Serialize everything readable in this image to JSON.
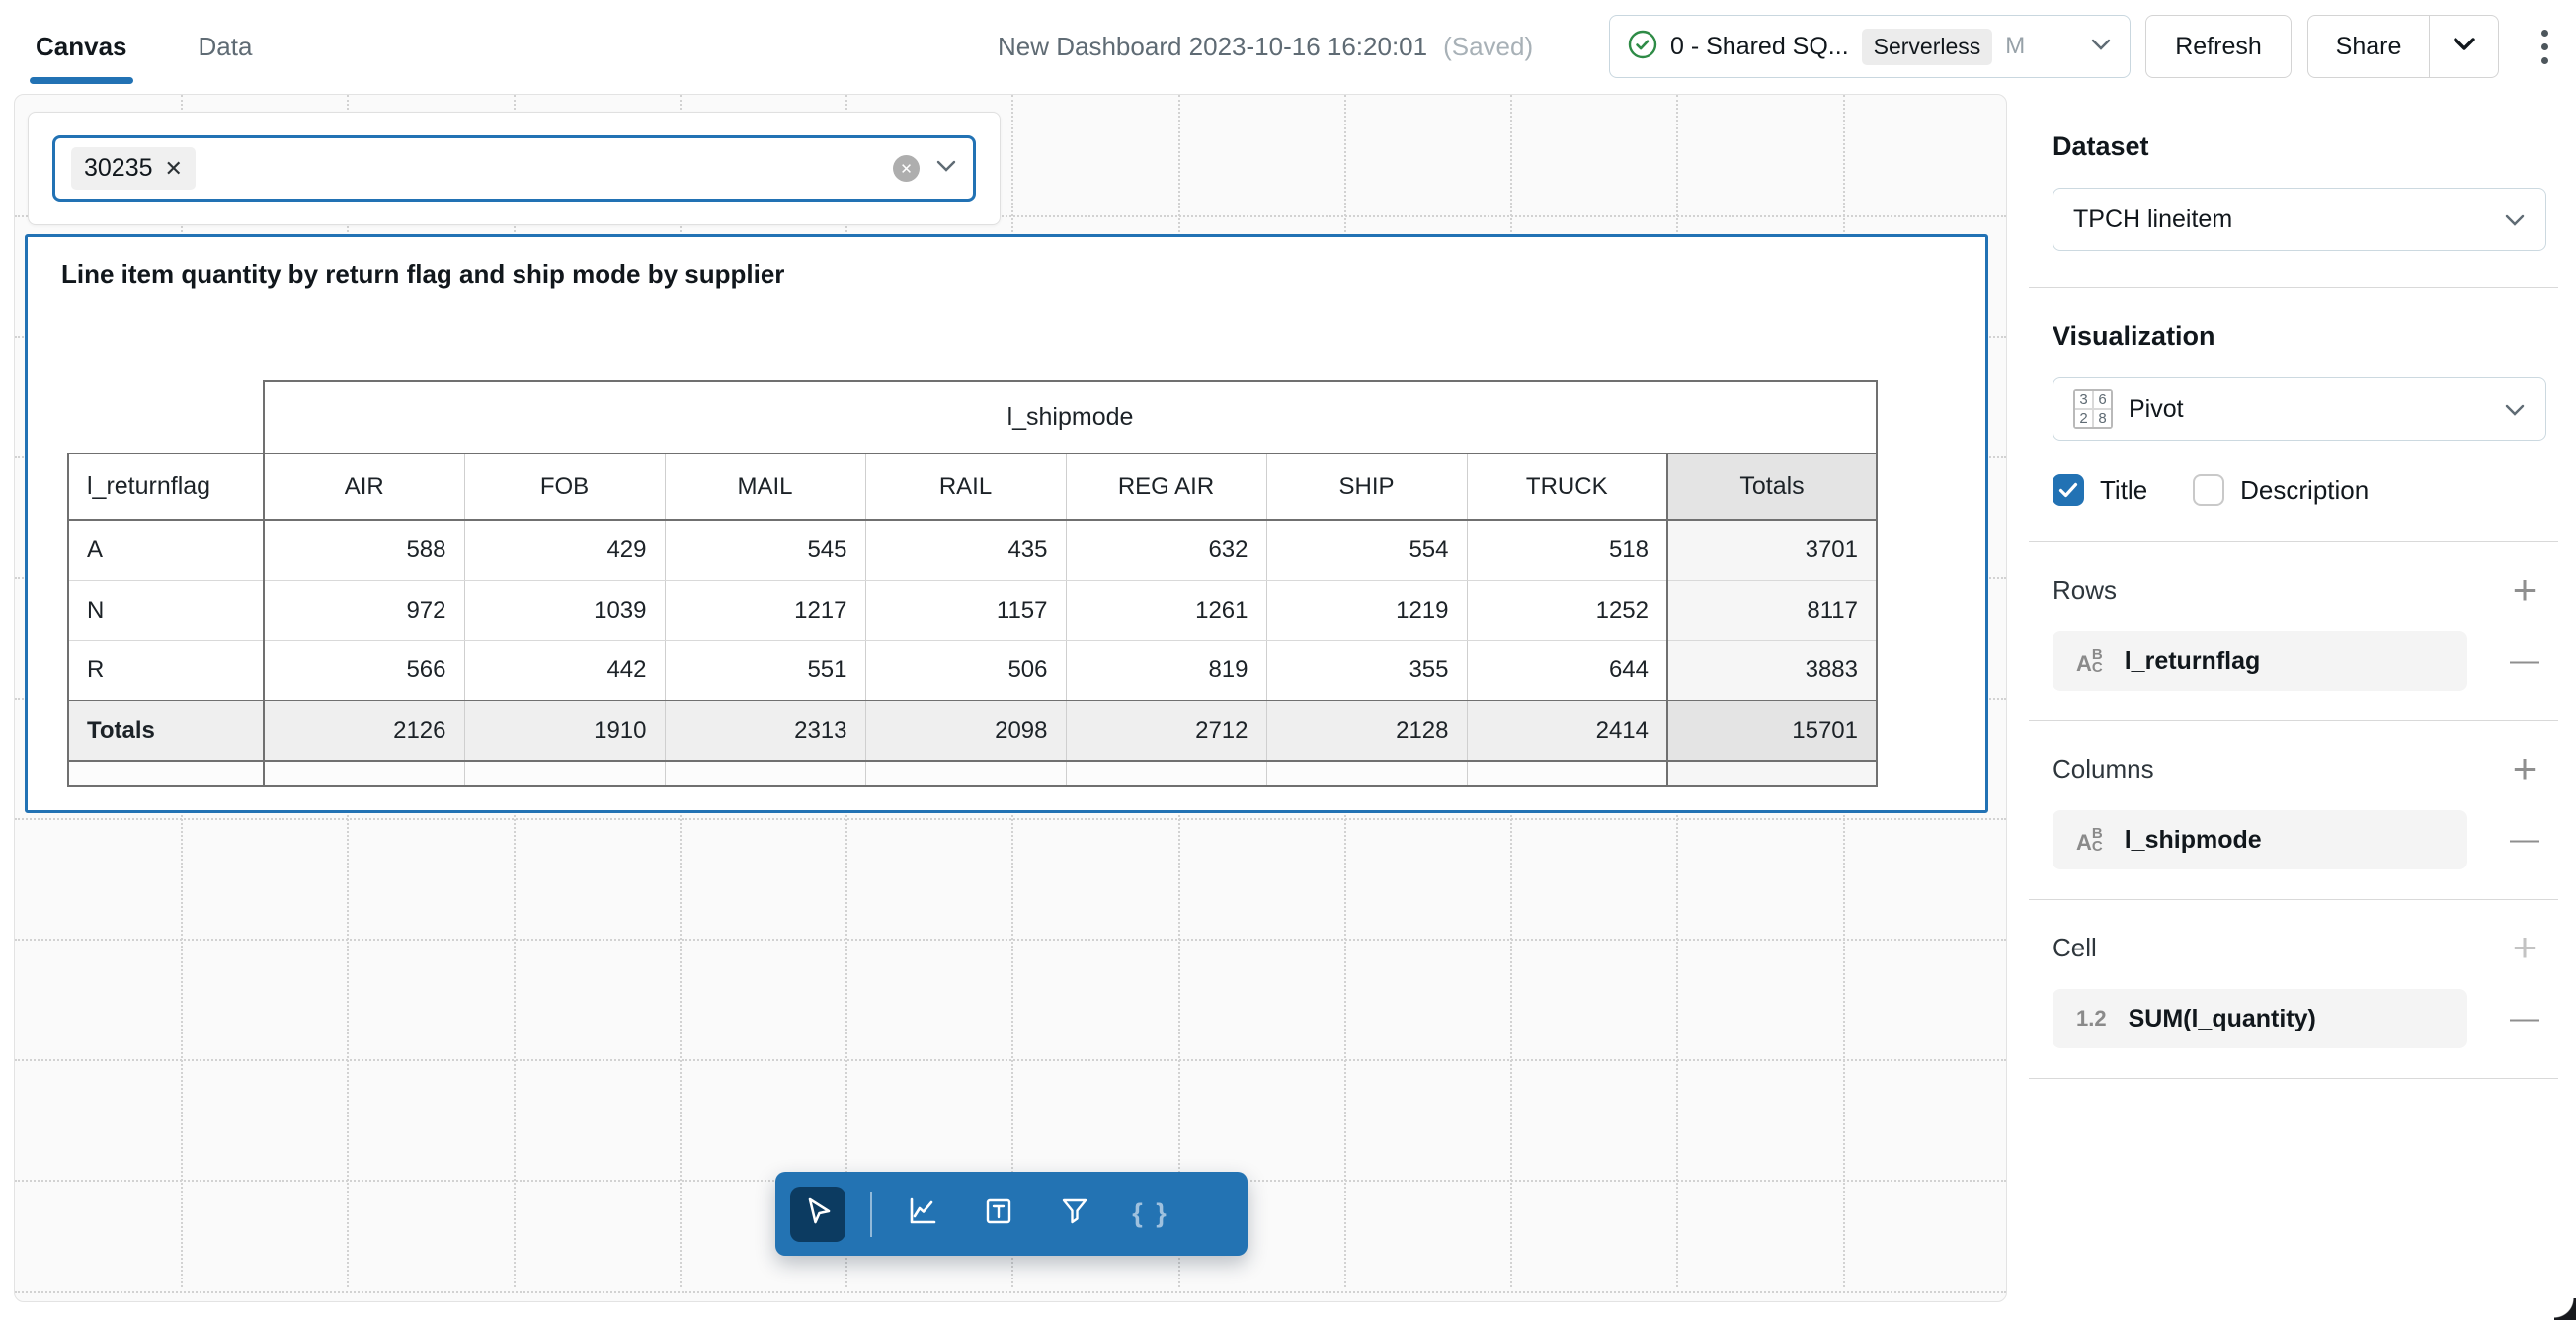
{
  "header": {
    "tabs": [
      {
        "label": "Canvas"
      },
      {
        "label": "Data"
      }
    ],
    "title": "New Dashboard 2023-10-16 16:20:01",
    "saved_status": "(Saved)",
    "warehouse": {
      "name": "0 - Shared SQ...",
      "badge": "Serverless",
      "size": "M"
    },
    "refresh_label": "Refresh",
    "share_label": "Share"
  },
  "canvas": {
    "filter_widget": {
      "chip_value": "30235",
      "chip_remove_glyph": "✕",
      "clear_glyph": "✕"
    },
    "pivot_widget": {
      "title": "Line item quantity by return flag and ship mode by supplier",
      "table": {
        "type": "table",
        "column_group_label": "l_shipmode",
        "row_group_label": "l_returnflag",
        "columns": [
          "AIR",
          "FOB",
          "MAIL",
          "RAIL",
          "REG AIR",
          "SHIP",
          "TRUCK"
        ],
        "totals_label": "Totals",
        "rows": [
          {
            "label": "A",
            "values": [
              588,
              429,
              545,
              435,
              632,
              554,
              518
            ],
            "total": 3701
          },
          {
            "label": "N",
            "values": [
              972,
              1039,
              1217,
              1157,
              1261,
              1219,
              1252
            ],
            "total": 8117
          },
          {
            "label": "R",
            "values": [
              566,
              442,
              551,
              506,
              819,
              355,
              644
            ],
            "total": 3883
          }
        ],
        "totals_row": {
          "label": "Totals",
          "values": [
            2126,
            1910,
            2313,
            2098,
            2712,
            2128,
            2414
          ],
          "total": 15701
        }
      }
    },
    "toolbar": {
      "active_tool": "cursor",
      "braces_glyph": "{ }"
    }
  },
  "sidebar": {
    "dataset": {
      "heading": "Dataset",
      "value": "TPCH lineitem"
    },
    "visualization": {
      "heading": "Visualization",
      "value": "Pivot",
      "icon_numbers": [
        "3",
        "6",
        "2",
        "8"
      ]
    },
    "options": {
      "title_label": "Title",
      "title_checked": true,
      "description_label": "Description",
      "description_checked": false
    },
    "sections": [
      {
        "label": "Rows",
        "field": "l_returnflag",
        "icon": "abc"
      },
      {
        "label": "Columns",
        "field": "l_shipmode",
        "icon": "abc"
      },
      {
        "label": "Cell",
        "field": "SUM(l_quantity)",
        "icon": "1.2"
      }
    ],
    "abc_icon_letters": [
      "A",
      "B",
      "C"
    ],
    "numeric_icon_text": "1.2"
  },
  "colors": {
    "accent": "#2272B4",
    "toolbar_active": "#0C3B61",
    "success_green": "#2e8b46"
  }
}
